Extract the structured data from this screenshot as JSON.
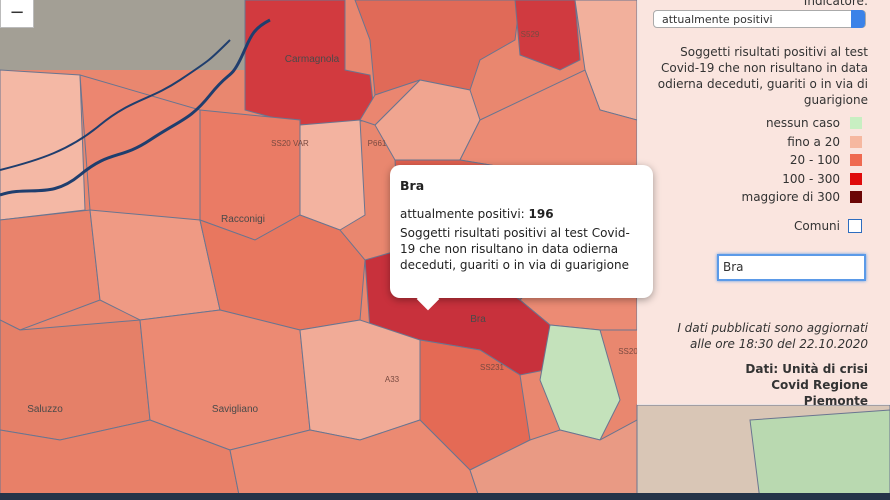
{
  "map": {
    "places": [
      "Carmagnola",
      "Racconigi",
      "Saluzzo",
      "Savigliano",
      "Bra"
    ],
    "roads": [
      "S529",
      "P661",
      "SS20 VAR",
      "SS231",
      "A33",
      "SS20"
    ]
  },
  "zoom_out": "−",
  "panel": {
    "indicator_label": "Indicatore:",
    "indicator_select": "attualmente positivi",
    "description": "Soggetti risultati positivi al test Covid-19 che non risultano in data odierna deceduti, guariti o in via di guarigione",
    "legend": [
      {
        "label": "nessun caso",
        "color": "#c8efc2"
      },
      {
        "label": "fino a 20",
        "color": "#f6b8a0"
      },
      {
        "label": "20 - 100",
        "color": "#ef6a50"
      },
      {
        "label": "100 - 300",
        "color": "#df0a0a"
      },
      {
        "label": "maggiore di 300",
        "color": "#6b0606"
      }
    ],
    "comuni_label": "Comuni",
    "search_value": "Bra",
    "update_note": "I dati pubblicati sono aggiornati alle ore 18:30 del 22.10.2020",
    "source": "Dati: Unità di crisi Covid Regione Piemonte"
  },
  "popup": {
    "title": "Bra",
    "indicator": "attualmente positivi:",
    "value": 196,
    "description": "Soggetti risultati positivi al test Covid-19 che non risultano in data odierna deceduti, guariti o in via di guarigione"
  }
}
